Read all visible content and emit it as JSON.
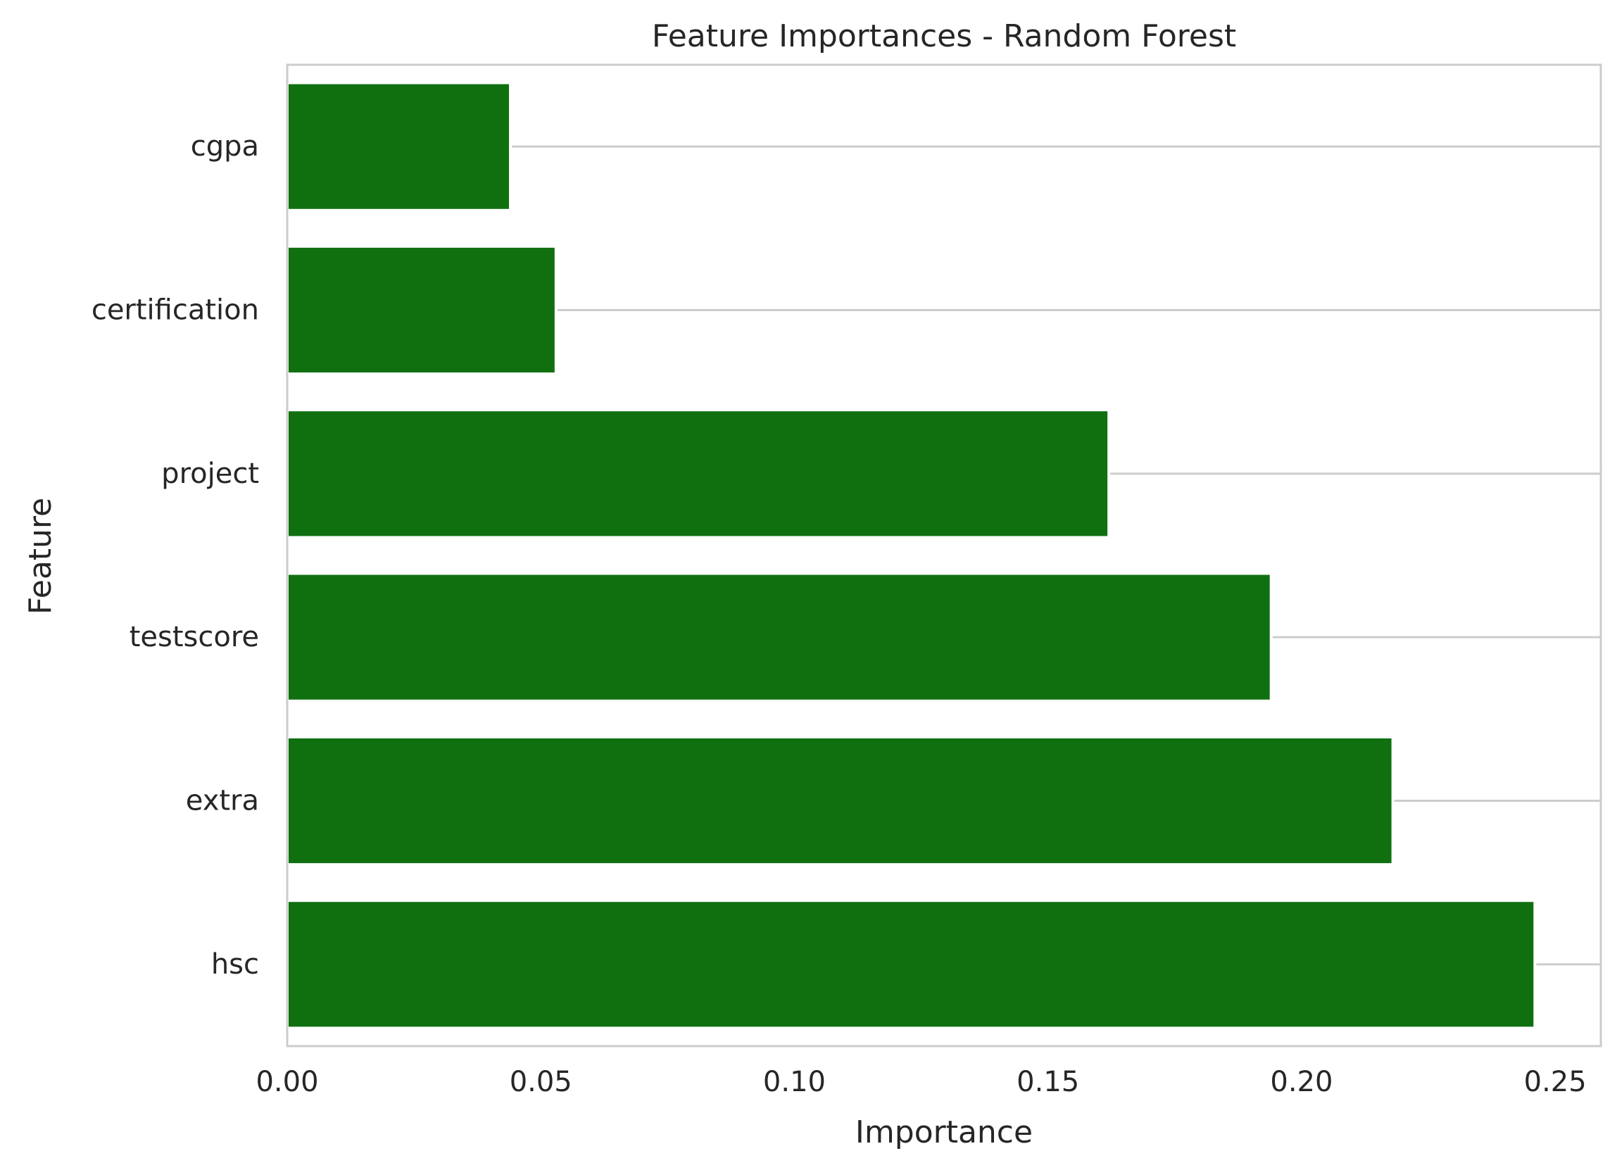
{
  "chart_data": {
    "type": "bar",
    "orientation": "horizontal",
    "title": "Feature Importances - Random Forest",
    "xlabel": "Importance",
    "ylabel": "Feature",
    "categories": [
      "cgpa",
      "certification",
      "project",
      "testscore",
      "extra",
      "hsc"
    ],
    "values": [
      0.044,
      0.053,
      0.162,
      0.194,
      0.218,
      0.246
    ],
    "xlim": [
      0,
      0.259
    ],
    "xticks": [
      0.0,
      0.05,
      0.1,
      0.15,
      0.2,
      0.25
    ],
    "xtick_labels": [
      "0.00",
      "0.05",
      "0.10",
      "0.15",
      "0.20",
      "0.25"
    ],
    "grid": "y-major",
    "bar_color": "#107010",
    "grid_color": "#cccccc",
    "spine_color": "#cccccc"
  }
}
